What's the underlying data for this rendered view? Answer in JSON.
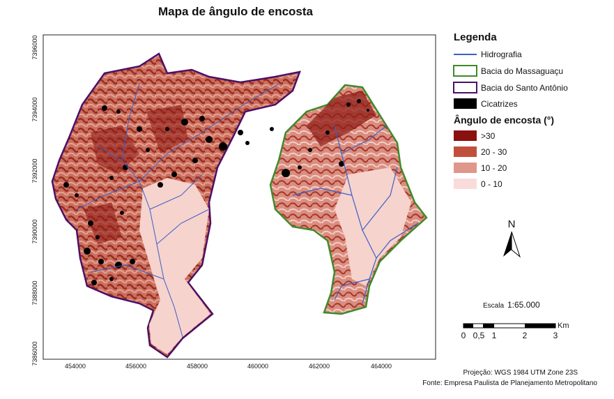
{
  "title": "Mapa de ângulo de encosta",
  "map": {
    "x_ticks": [
      "454000",
      "456000",
      "458000",
      "460000",
      "462000",
      "464000"
    ],
    "y_ticks": [
      "7396000",
      "7394000",
      "7392000",
      "7390000",
      "7388000",
      "7386000"
    ]
  },
  "legend": {
    "title": "Legenda",
    "items": [
      "Hidrografia",
      "Bacia do Massaguaçu",
      "Bacia do Santo Antônio",
      "Cicatrizes"
    ],
    "slope_title": "Ângulo de encosta (°)",
    "classes": [
      ">30",
      "20 - 30",
      "10 - 20",
      "0 - 10"
    ]
  },
  "north": "N",
  "scale": {
    "label": "Escala",
    "ratio": "1:65.000",
    "unit": "Km",
    "ticks": [
      "0",
      "0,5",
      "1",
      "2",
      "3"
    ]
  },
  "projection": "Projeção: WGS 1984 UTM Zone 23S",
  "source": "Fonte: Empresa Paulista de Planejamento Metropolitano"
}
